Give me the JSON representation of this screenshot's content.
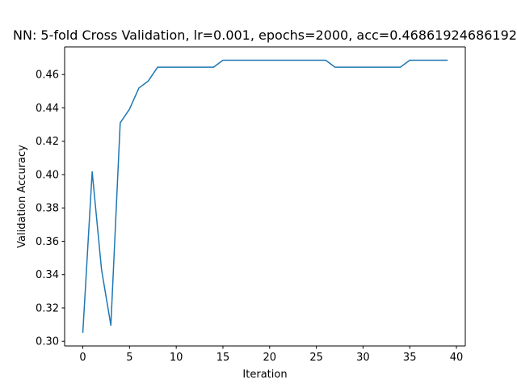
{
  "chart_data": {
    "type": "line",
    "title": "NN: 5-fold Cross Validation, lr=0.001, epochs=2000, acc=0.46861924686192",
    "xlabel": "Iteration",
    "ylabel": "Validation Accuracy",
    "xlim": [
      -1.95,
      40.95
    ],
    "ylim": [
      0.2972,
      0.4766
    ],
    "xticks": [
      0,
      5,
      10,
      15,
      20,
      25,
      30,
      35,
      40
    ],
    "xtick_labels": [
      "0",
      "5",
      "10",
      "15",
      "20",
      "25",
      "30",
      "35",
      "40"
    ],
    "yticks": [
      0.3,
      0.32,
      0.34,
      0.36,
      0.38,
      0.4,
      0.42,
      0.44,
      0.46
    ],
    "ytick_labels": [
      "0.30",
      "0.32",
      "0.34",
      "0.36",
      "0.38",
      "0.40",
      "0.42",
      "0.44",
      "0.46"
    ],
    "grid": false,
    "line_color": "#1f77b4",
    "series": [
      {
        "x": [
          0,
          1,
          2,
          3,
          4,
          5,
          6,
          7,
          8,
          9,
          10,
          11,
          12,
          13,
          14,
          15,
          16,
          17,
          18,
          19,
          20,
          21,
          22,
          23,
          24,
          25,
          26,
          27,
          28,
          29,
          30,
          31,
          32,
          33,
          34,
          35,
          36,
          37,
          38,
          39
        ],
        "values": [
          0.3054,
          0.4017,
          0.3431,
          0.3096,
          0.431,
          0.4393,
          0.4519,
          0.4561,
          0.4644,
          0.4644,
          0.4644,
          0.4644,
          0.4644,
          0.4644,
          0.4644,
          0.4686,
          0.4686,
          0.4686,
          0.4686,
          0.4686,
          0.4686,
          0.4686,
          0.4686,
          0.4686,
          0.4686,
          0.4686,
          0.4686,
          0.4644,
          0.4644,
          0.4644,
          0.4644,
          0.4644,
          0.4644,
          0.4644,
          0.4644,
          0.4686,
          0.4686,
          0.4686,
          0.4686,
          0.4686
        ]
      }
    ]
  }
}
